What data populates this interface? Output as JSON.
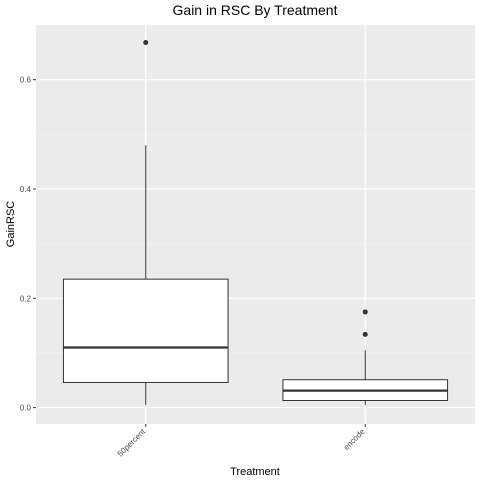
{
  "chart_data": {
    "type": "boxplot",
    "title": "Gain in RSC By Treatment",
    "xlabel": "Treatment",
    "ylabel": "GainRSC",
    "categories": [
      "50percent",
      "encode"
    ],
    "ylim": [
      -0.03,
      0.7
    ],
    "yticks": [
      0.0,
      0.2,
      0.4,
      0.6
    ],
    "ytick_labels": [
      "0.0",
      "0.2",
      "0.4",
      "0.6"
    ],
    "grid": true,
    "colors": {
      "panel": "#ebebeb",
      "grid_major": "#ffffff",
      "box_fill": "#ffffff",
      "box_line": "#333333"
    },
    "boxes": [
      {
        "category": "50percent",
        "whisker_low": 0.005,
        "q1": 0.046,
        "median": 0.11,
        "q3": 0.235,
        "whisker_high": 0.48,
        "outliers": [
          0.668
        ]
      },
      {
        "category": "encode",
        "whisker_low": 0.005,
        "q1": 0.013,
        "median": 0.031,
        "q3": 0.051,
        "whisker_high": 0.105,
        "outliers": [
          0.134,
          0.175
        ]
      }
    ]
  }
}
